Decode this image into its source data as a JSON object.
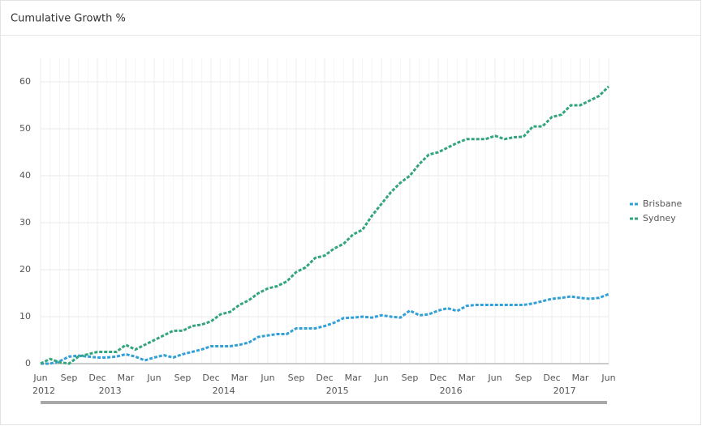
{
  "chart_data": {
    "type": "line",
    "title": "Cumulative Growth %",
    "categories": [
      "Jun",
      null,
      null,
      "Sep",
      null,
      null,
      "Dec",
      null,
      null,
      "Mar",
      null,
      null,
      "Jun",
      null,
      null,
      "Sep",
      null,
      null,
      "Dec",
      null,
      null,
      "Mar",
      null,
      null,
      "Jun",
      null,
      null,
      "Sep",
      null,
      null,
      "Dec",
      null,
      null,
      "Mar",
      null,
      null,
      "Jun",
      null,
      null,
      "Sep",
      null,
      null,
      "Dec",
      null,
      null,
      "Mar",
      null,
      null,
      "Jun",
      null,
      null,
      "Sep",
      null,
      null,
      "Dec",
      null,
      null,
      "Mar",
      null,
      null,
      "Jun"
    ],
    "year_labels": [
      "2012",
      null,
      null,
      null,
      null,
      null,
      null,
      "2013",
      null,
      null,
      null,
      null,
      null,
      null,
      null,
      null,
      null,
      null,
      null,
      "2014",
      null,
      null,
      null,
      null,
      null,
      null,
      null,
      null,
      null,
      null,
      null,
      "2015",
      null,
      null,
      null,
      null,
      null,
      null,
      null,
      null,
      null,
      null,
      null,
      "2016",
      null,
      null,
      null,
      null,
      null,
      null,
      null,
      null,
      null,
      null,
      null,
      "2017",
      null,
      null,
      null,
      null,
      null
    ],
    "series": [
      {
        "name": "Brisbane",
        "color": "#32a0d6",
        "values": [
          0,
          0,
          0.5,
          1.5,
          1.7,
          1.5,
          1.3,
          1.3,
          1.5,
          2,
          1.5,
          0.7,
          1.3,
          1.8,
          1.3,
          2,
          2.5,
          3,
          3.7,
          3.7,
          3.7,
          4,
          4.5,
          5.7,
          6,
          6.3,
          6.3,
          7.5,
          7.5,
          7.5,
          8,
          8.7,
          9.7,
          9.8,
          10,
          9.8,
          10.3,
          10,
          9.8,
          11.3,
          10.3,
          10.5,
          11.3,
          11.8,
          11.2,
          12.3,
          12.5,
          12.5,
          12.5,
          12.5,
          12.5,
          12.5,
          12.8,
          13.3,
          13.8,
          14,
          14.3,
          14,
          13.8,
          14,
          14.8
        ]
      },
      {
        "name": "Sydney",
        "color": "#33a57c",
        "values": [
          0,
          1,
          0.3,
          0,
          1.5,
          2,
          2.5,
          2.5,
          2.5,
          4,
          3,
          4,
          5,
          6,
          7,
          7,
          8,
          8.3,
          9,
          10.5,
          11,
          12.5,
          13.5,
          15,
          16,
          16.5,
          17.5,
          19.5,
          20.5,
          22.5,
          23,
          24.5,
          25.5,
          27.5,
          28.5,
          31.5,
          34,
          36.5,
          38.5,
          40,
          42.5,
          44.5,
          45,
          46,
          47,
          47.8,
          47.8,
          47.8,
          48.5,
          47.8,
          48.2,
          48.3,
          50.5,
          50.5,
          52.5,
          53,
          55,
          55,
          56,
          57,
          59
        ]
      }
    ],
    "ylim": [
      0,
      65
    ],
    "yticks": [
      0,
      10,
      20,
      30,
      40,
      50,
      60
    ],
    "grid": true,
    "legend": "right"
  }
}
